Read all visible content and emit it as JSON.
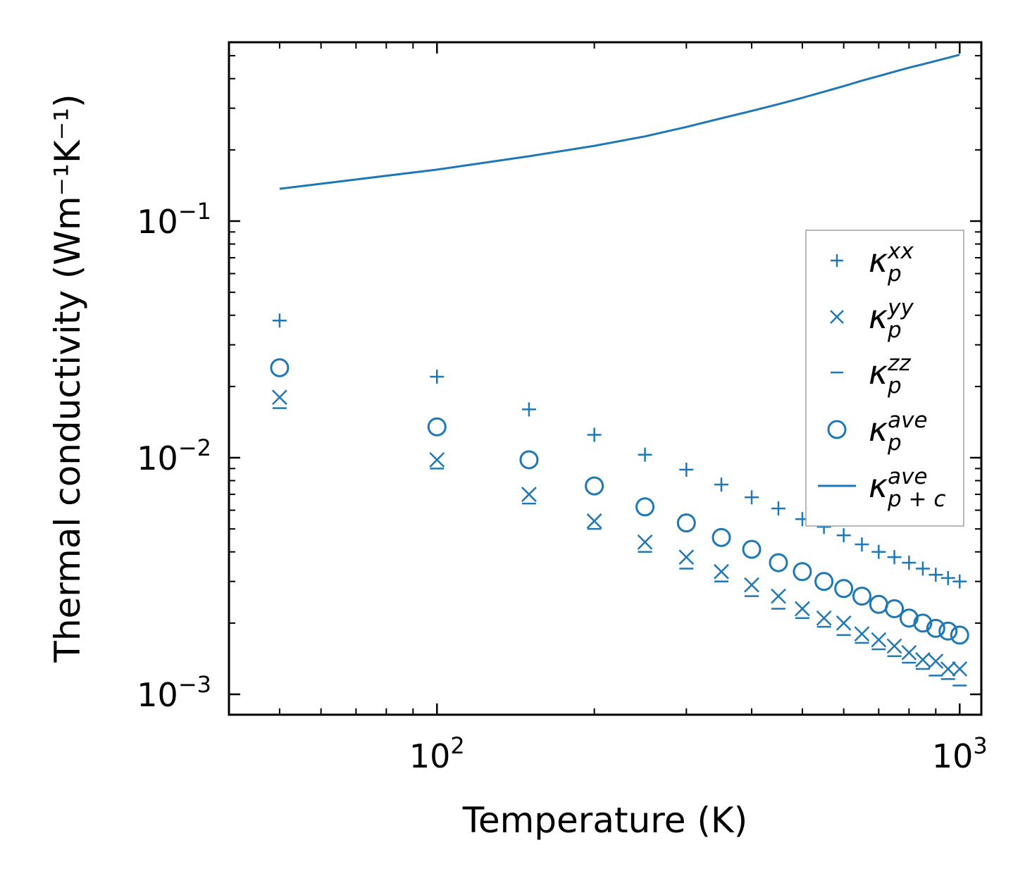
{
  "chart_data": {
    "type": "scatter",
    "xscale": "log",
    "yscale": "log",
    "xlabel": "Temperature (K)",
    "ylabel": "Thermal conductivity (Wm⁻¹K⁻¹)",
    "xlim": [
      40,
      1100
    ],
    "ylim": [
      0.00082,
      0.57
    ],
    "color": "#1f77b4",
    "xticks": [
      {
        "base": "10",
        "exp": "2"
      },
      {
        "base": "10",
        "exp": "3"
      }
    ],
    "yticks": [
      {
        "base": "10",
        "exp": "−3"
      },
      {
        "base": "10",
        "exp": "−2"
      },
      {
        "base": "10",
        "exp": "−1"
      }
    ],
    "x": [
      50,
      100,
      150,
      200,
      250,
      300,
      350,
      400,
      450,
      500,
      550,
      600,
      650,
      700,
      750,
      800,
      850,
      900,
      950,
      1000
    ],
    "series": [
      {
        "name": "kp_xx",
        "marker": "plus",
        "label": {
          "base": "κ",
          "sub": "p",
          "sup": "xx"
        },
        "values": [
          0.038,
          0.022,
          0.016,
          0.0125,
          0.0103,
          0.0089,
          0.0077,
          0.0068,
          0.0061,
          0.0055,
          0.0051,
          0.0047,
          0.0043,
          0.004,
          0.0038,
          0.0036,
          0.0034,
          0.0032,
          0.0031,
          0.003
        ]
      },
      {
        "name": "kp_yy",
        "marker": "x",
        "label": {
          "base": "κ",
          "sub": "p",
          "sup": "yy"
        },
        "values": [
          0.018,
          0.0098,
          0.007,
          0.0054,
          0.0044,
          0.0038,
          0.0033,
          0.0029,
          0.0026,
          0.0023,
          0.0021,
          0.002,
          0.0018,
          0.0017,
          0.0016,
          0.0015,
          0.0014,
          0.00138,
          0.00128,
          0.00128
        ]
      },
      {
        "name": "kp_zz",
        "marker": "hline",
        "label": {
          "base": "κ",
          "sub": "p",
          "sup": "zz"
        },
        "values": [
          0.0162,
          0.009,
          0.0064,
          0.005,
          0.004,
          0.0034,
          0.003,
          0.0026,
          0.0023,
          0.0021,
          0.00193,
          0.00178,
          0.00165,
          0.00155,
          0.00145,
          0.00136,
          0.00128,
          0.0012,
          0.00116,
          0.00109
        ]
      },
      {
        "name": "kp_ave",
        "marker": "circle",
        "label": {
          "base": "κ",
          "sub": "p",
          "sup": "ave"
        },
        "values": [
          0.024,
          0.0135,
          0.0098,
          0.0076,
          0.0062,
          0.0053,
          0.0046,
          0.0041,
          0.0036,
          0.0033,
          0.003,
          0.0028,
          0.0026,
          0.0024,
          0.0023,
          0.0021,
          0.002,
          0.0019,
          0.00185,
          0.00178
        ]
      },
      {
        "name": "kp_ave_plus_c",
        "marker": "line",
        "label": {
          "base": "κ",
          "sub": "p + c",
          "sup": "ave"
        },
        "values": [
          0.137,
          0.165,
          0.188,
          0.208,
          0.228,
          0.25,
          0.272,
          0.292,
          0.312,
          0.332,
          0.352,
          0.372,
          0.392,
          0.41,
          0.428,
          0.445,
          0.46,
          0.475,
          0.49,
          0.505
        ]
      }
    ],
    "legend_position": "center-right"
  }
}
